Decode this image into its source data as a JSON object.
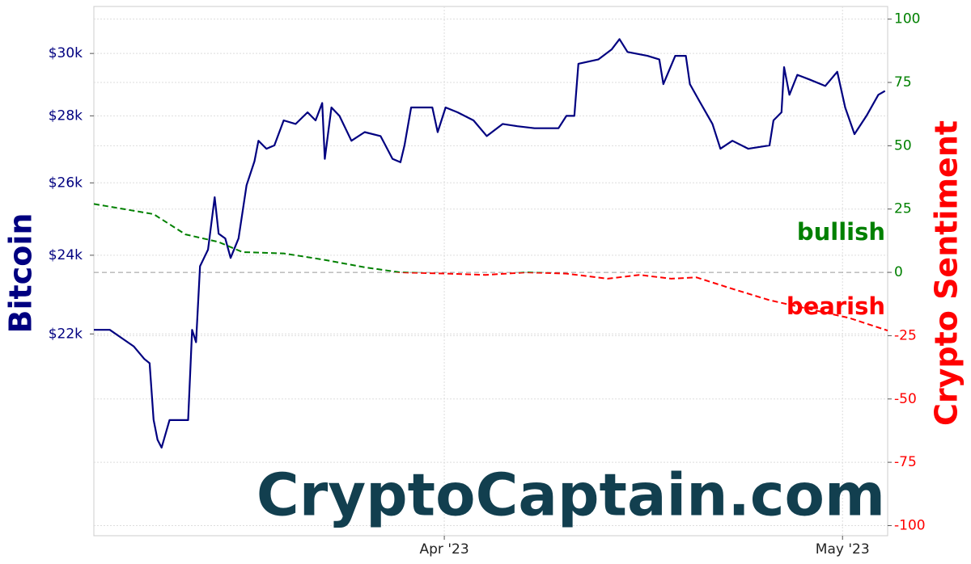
{
  "chart_data": {
    "type": "line",
    "xlim": [
      -26.4,
      33.4
    ],
    "xticks": [
      {
        "value": 0,
        "label": "Apr '23"
      },
      {
        "value": 30,
        "label": "May '23"
      }
    ],
    "ylim": [
      17600,
      31600
    ],
    "yscale": "log",
    "yticks": [
      {
        "value": 22000,
        "label": "$22k"
      },
      {
        "value": 24000,
        "label": "$24k"
      },
      {
        "value": 26000,
        "label": "$26k"
      },
      {
        "value": 28000,
        "label": "$28k"
      },
      {
        "value": 30000,
        "label": "$30k"
      }
    ],
    "y2lim": [
      -104,
      105
    ],
    "y2ticks": [
      -100,
      -75,
      -50,
      -25,
      0,
      25,
      50,
      75,
      100
    ],
    "grid": true,
    "series": [
      {
        "name": "Bitcoin",
        "color": "#000080",
        "x": [
          -26.4,
          -25.2,
          -24.3,
          -23.4,
          -22.6,
          -22.2,
          -21.9,
          -21.6,
          -21.3,
          -20.7,
          -20.1,
          -19.3,
          -19.0,
          -18.7,
          -18.4,
          -17.8,
          -17.3,
          -17.0,
          -16.5,
          -16.1,
          -15.5,
          -14.9,
          -14.3,
          -14.0,
          -13.4,
          -12.8,
          -12.1,
          -11.2,
          -10.3,
          -9.7,
          -9.2,
          -9.0,
          -8.5,
          -7.9,
          -7.0,
          -6.0,
          -4.8,
          -3.9,
          -3.3,
          -3.0,
          -2.5,
          -0.9,
          -0.5,
          0.1,
          1.0,
          2.2,
          3.2,
          4.4,
          5.5,
          6.8,
          8.6,
          9.2,
          9.8,
          10.1,
          11.6,
          12.6,
          13.2,
          13.8,
          15.3,
          16.2,
          16.5,
          17.4,
          18.2,
          18.5,
          19.3,
          20.2,
          20.8,
          21.7,
          22.9,
          24.5,
          24.8,
          25.4,
          25.6,
          26.0,
          26.6,
          27.5,
          28.7,
          29.6,
          30.2,
          30.9,
          31.8,
          32.7,
          33.2
        ],
        "values": [
          22100,
          22100,
          21900,
          21700,
          21400,
          21300,
          20010,
          19570,
          19400,
          20000,
          20000,
          20000,
          22100,
          21800,
          23710,
          24150,
          25590,
          24580,
          24450,
          23930,
          24450,
          25930,
          26630,
          27240,
          27000,
          27100,
          27860,
          27750,
          28110,
          27860,
          28400,
          26700,
          28260,
          28000,
          27240,
          27500,
          27380,
          26700,
          26600,
          27100,
          28260,
          28260,
          27500,
          28260,
          28110,
          27860,
          27380,
          27750,
          27680,
          27620,
          27620,
          28000,
          28000,
          29660,
          29800,
          30130,
          30480,
          30050,
          29920,
          29800,
          29000,
          29920,
          29920,
          29000,
          28400,
          27750,
          27000,
          27240,
          27000,
          27100,
          27860,
          28110,
          29550,
          28660,
          29300,
          29150,
          28940,
          29400,
          28260,
          27440,
          28000,
          28660,
          28780
        ]
      },
      {
        "name": "Crypto Sentiment",
        "axis": "y2",
        "color": "#008000",
        "negative_color": "#ff0000",
        "dashed": true,
        "x": [
          -26.4,
          -21.9,
          -19.5,
          -17.0,
          -15.2,
          -12.1,
          -9.1,
          -6.0,
          -3.3,
          0.1,
          3.1,
          6.2,
          9.2,
          12.3,
          14.7,
          17.1,
          19.0,
          21.4,
          24.5,
          27.5,
          30.5,
          33.4
        ],
        "values": [
          27,
          23,
          15,
          12,
          8,
          7.5,
          5,
          2,
          0,
          -0.5,
          -1,
          0,
          -0.5,
          -2.5,
          -1,
          -2.5,
          -2,
          -6,
          -11,
          -14.5,
          -18,
          -23
        ]
      }
    ],
    "annotations": [
      {
        "text": "bullish",
        "color": "#008000"
      },
      {
        "text": "bearish",
        "color": "#ff0000"
      }
    ],
    "watermark": "CryptoCaptain.com"
  }
}
